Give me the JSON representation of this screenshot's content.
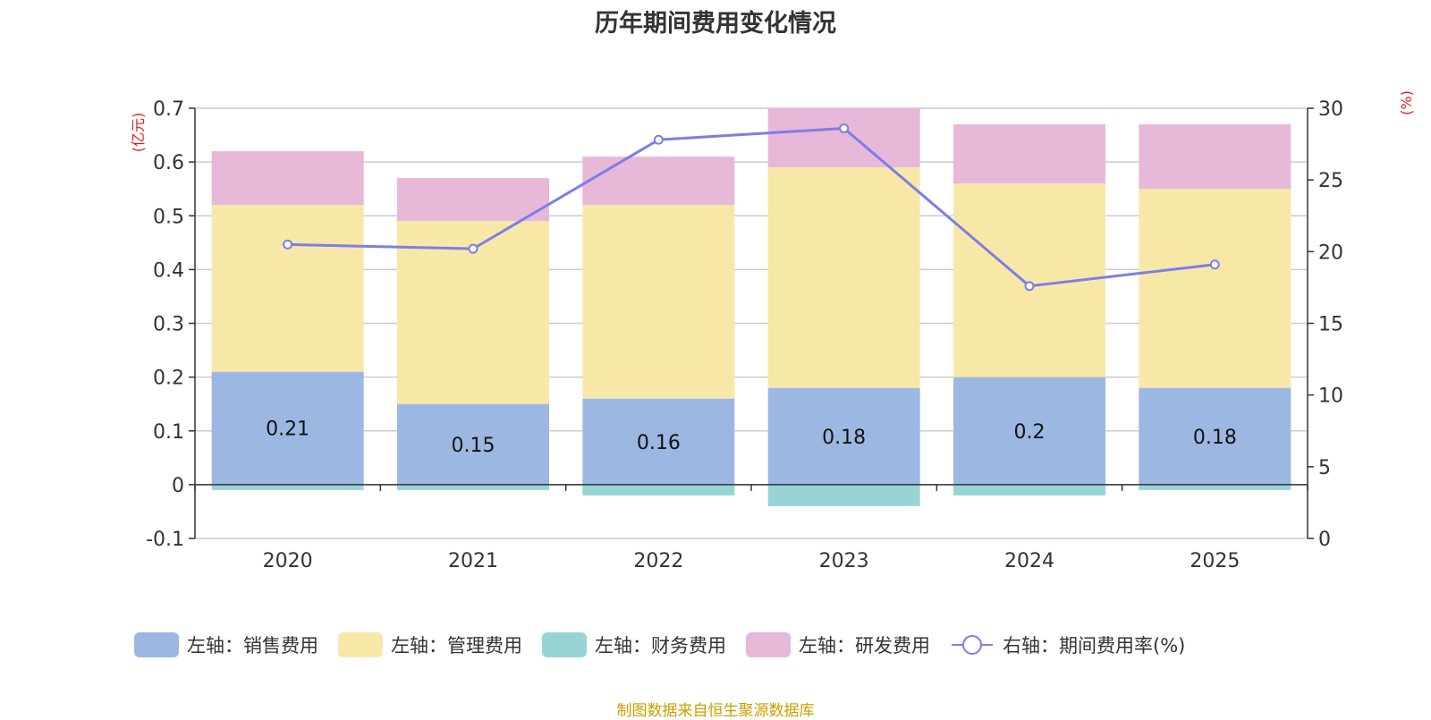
{
  "chart_data": {
    "type": "bar",
    "stacked": true,
    "title": "历年期间费用变化情况",
    "categories": [
      "2020",
      "2021",
      "2022",
      "2023",
      "2024",
      "2025"
    ],
    "left_axis": {
      "label": "(亿元)",
      "range": [
        -0.1,
        0.7
      ],
      "ticks": [
        "-0.1",
        "0",
        "0.1",
        "0.2",
        "0.3",
        "0.4",
        "0.5",
        "0.6",
        "0.7"
      ]
    },
    "right_axis": {
      "label": "(%)",
      "range": [
        0,
        30
      ],
      "ticks": [
        "0",
        "5",
        "10",
        "15",
        "20",
        "25",
        "30"
      ]
    },
    "series": [
      {
        "name": "左轴：销售费用",
        "axis": "left",
        "color": "#9cb8e2",
        "values": [
          0.21,
          0.15,
          0.16,
          0.18,
          0.2,
          0.18
        ],
        "labels": [
          "0.21",
          "0.15",
          "0.16",
          "0.18",
          "0.2",
          "0.18"
        ]
      },
      {
        "name": "左轴：管理费用",
        "axis": "left",
        "color": "#f8e8a8",
        "values": [
          0.31,
          0.34,
          0.36,
          0.41,
          0.36,
          0.37
        ]
      },
      {
        "name": "左轴：财务费用",
        "axis": "left",
        "color": "#98d4d4",
        "values": [
          -0.01,
          -0.01,
          -0.02,
          -0.04,
          -0.02,
          -0.01
        ]
      },
      {
        "name": "左轴：研发费用",
        "axis": "left",
        "color": "#e8b8d8",
        "values": [
          0.1,
          0.08,
          0.09,
          0.11,
          0.11,
          0.12
        ]
      }
    ],
    "line": {
      "name": "右轴：期间费用率(%)",
      "axis": "right",
      "color": "#7b7fe8",
      "values": [
        20.5,
        20.2,
        27.8,
        28.6,
        17.6,
        19.1
      ]
    }
  },
  "source": "制图数据来自恒生聚源数据库"
}
